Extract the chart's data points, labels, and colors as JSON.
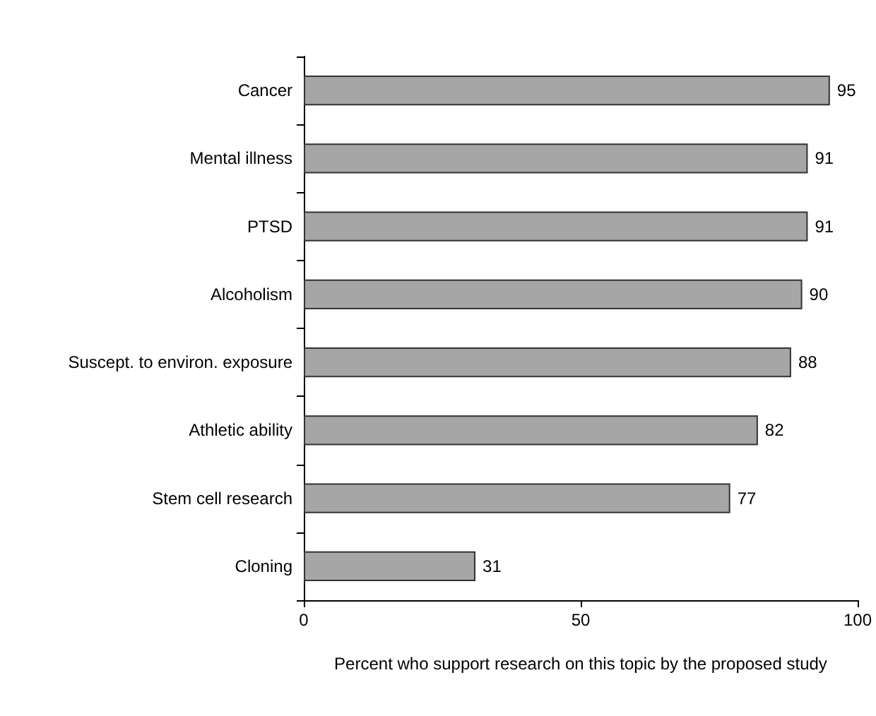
{
  "chart_data": {
    "type": "bar",
    "orientation": "horizontal",
    "xlabel": "Percent who support research on this topic by the proposed study",
    "categories": [
      "Cancer",
      "Mental illness",
      "PTSD",
      "Alcoholism",
      "Suscept. to environ. exposure",
      "Athletic ability",
      "Stem cell research",
      "Cloning"
    ],
    "values": [
      95,
      91,
      91,
      90,
      88,
      82,
      77,
      31
    ],
    "color": "#a6a6a6",
    "xlim": [
      0,
      100
    ],
    "xticks": [
      0,
      50,
      100
    ],
    "grid": false,
    "data_labels": true
  }
}
